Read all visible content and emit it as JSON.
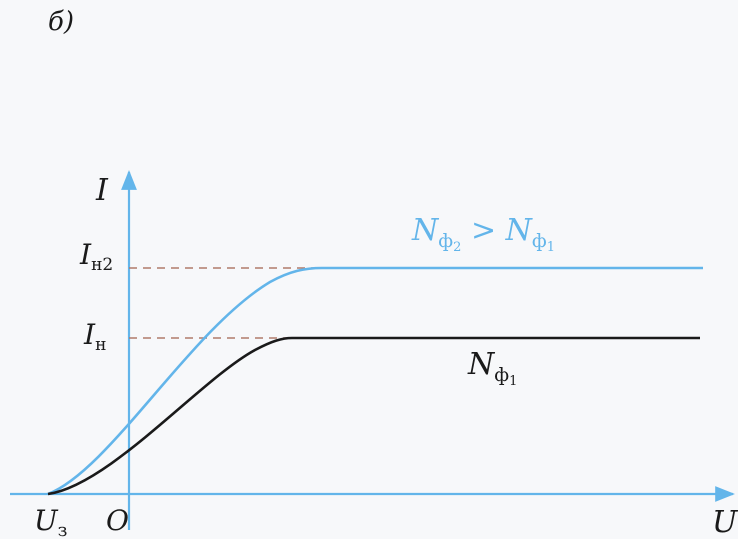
{
  "figure": {
    "panel_label": "б)"
  },
  "axes": {
    "y_symbol": "I",
    "x_symbol": "U",
    "origin_label": "O",
    "x_left_label_main": "U",
    "x_left_label_sub": "з"
  },
  "levels": {
    "upper_main": "I",
    "upper_sub": "н2",
    "lower_main": "I",
    "lower_sub": "н"
  },
  "curves": {
    "upper": {
      "color": "#63b5ea",
      "label_parts": [
        "N",
        "ф",
        "2",
        " > ",
        "N",
        "ф",
        "1"
      ]
    },
    "lower": {
      "color": "#1a1a1a",
      "label_parts": [
        "N",
        "ф",
        "1"
      ]
    }
  },
  "colors": {
    "axes": "#63b5ea",
    "dashed_guides": "#b07a6a",
    "text": "#1a1a1a",
    "background": "#f7f8fa"
  }
}
